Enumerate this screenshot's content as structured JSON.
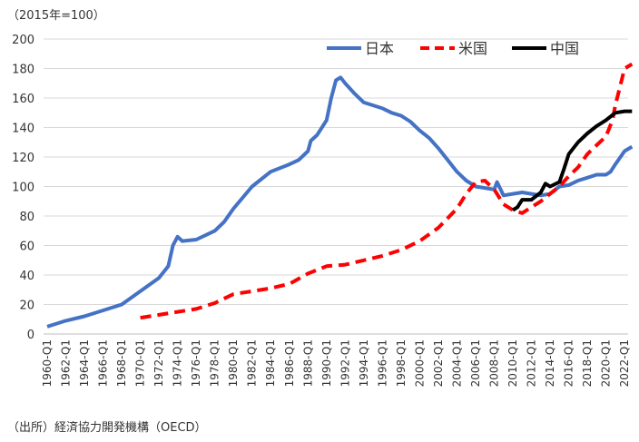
{
  "chart_data": {
    "type": "line",
    "title": "",
    "unit_label": "（2015年=100）",
    "xlabel": "",
    "ylabel": "",
    "ylim": [
      0,
      200
    ],
    "yticks": [
      0,
      20,
      40,
      60,
      80,
      100,
      120,
      140,
      160,
      180,
      200
    ],
    "xticks": [
      "1960-Q1",
      "1962-Q1",
      "1964-Q1",
      "1966-Q1",
      "1968-Q1",
      "1970-Q1",
      "1972-Q1",
      "1974-Q1",
      "1976-Q1",
      "1978-Q1",
      "1980-Q1",
      "1982-Q1",
      "1984-Q1",
      "1986-Q1",
      "1988-Q1",
      "1990-Q1",
      "1992-Q1",
      "1994-Q1",
      "1996-Q1",
      "1998-Q1",
      "2000-Q1",
      "2002-Q1",
      "2004-Q1",
      "2006-Q1",
      "2008-Q1",
      "2010-Q1",
      "2012-Q1",
      "2014-Q1",
      "2016-Q1",
      "2018-Q1",
      "2020-Q1",
      "2022-Q1"
    ],
    "grid": true,
    "legend_position": "top-right",
    "series": [
      {
        "name": "日本",
        "color": "#4472C4",
        "style": "solid",
        "x": [
          1960,
          1962,
          1964,
          1966,
          1968,
          1970,
          1972,
          1973,
          1973.5,
          1974,
          1974.5,
          1976,
          1978,
          1979,
          1980,
          1982,
          1984,
          1986,
          1987,
          1988,
          1988.3,
          1989,
          1990,
          1990.5,
          1991,
          1991.5,
          1992,
          1993,
          1994,
          1996,
          1997,
          1998,
          1999,
          2000,
          2001,
          2002,
          2003,
          2004,
          2005,
          2006,
          2007,
          2008,
          2008.3,
          2009,
          2010,
          2011,
          2012,
          2013,
          2014,
          2015,
          2016,
          2017,
          2018,
          2019,
          2020,
          2020.5,
          2021,
          2022,
          2022.8
        ],
        "y": [
          5,
          9,
          12,
          16,
          20,
          29,
          38,
          46,
          60,
          66,
          63,
          64,
          70,
          76,
          85,
          100,
          110,
          115,
          118,
          124,
          131,
          135,
          145,
          160,
          172,
          174,
          170,
          163,
          157,
          153,
          150,
          148,
          144,
          138,
          133,
          126,
          118,
          110,
          104,
          100,
          99,
          98,
          103,
          94,
          95,
          96,
          95,
          94,
          95,
          100,
          101,
          104,
          106,
          108,
          108,
          110,
          115,
          124,
          127
        ]
      },
      {
        "name": "米国",
        "color": "#FF0000",
        "style": "dashed",
        "x": [
          1970,
          1972,
          1974,
          1976,
          1978,
          1980,
          1982,
          1984,
          1986,
          1988,
          1990,
          1992,
          1994,
          1996,
          1998,
          2000,
          2002,
          2004,
          2005,
          2006,
          2007,
          2008,
          2009,
          2010,
          2011,
          2012,
          2013,
          2014,
          2015,
          2016,
          2017,
          2018,
          2019,
          2020,
          2020.7,
          2021,
          2021.6,
          2022,
          2022.8
        ],
        "y": [
          11,
          13,
          15,
          17,
          21,
          27,
          29,
          31,
          34,
          41,
          46,
          47,
          50,
          53,
          57,
          63,
          72,
          85,
          95,
          103,
          104,
          98,
          88,
          84,
          82,
          86,
          90,
          95,
          100,
          107,
          113,
          122,
          128,
          134,
          145,
          155,
          170,
          180,
          183
        ]
      },
      {
        "name": "中国",
        "color": "#000000",
        "style": "solid",
        "x": [
          2010,
          2010.5,
          2011,
          2012,
          2013,
          2013.5,
          2014,
          2015,
          2015.5,
          2016,
          2017,
          2018,
          2019,
          2020,
          2021,
          2022,
          2022.8
        ],
        "y": [
          84,
          86,
          91,
          91,
          96,
          102,
          100,
          103,
          112,
          122,
          130,
          136,
          141,
          145,
          150,
          151,
          151
        ]
      }
    ]
  },
  "source": "（出所）経済協力開発機構（OECD）"
}
